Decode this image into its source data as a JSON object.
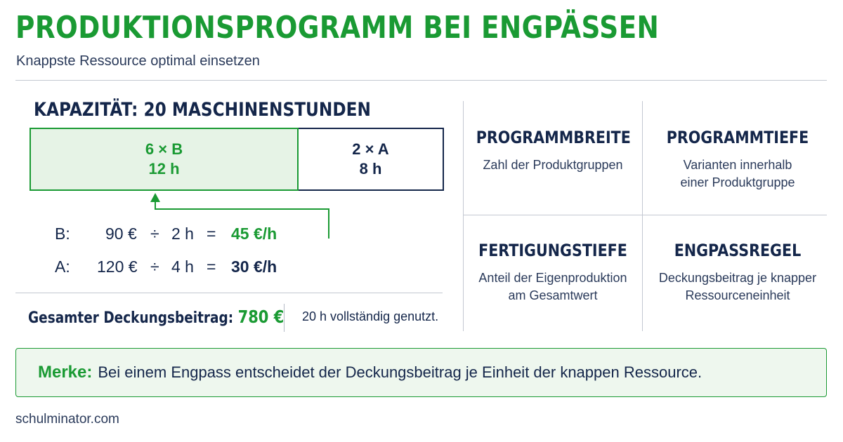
{
  "header": {
    "title": "PRODUKTIONSPROGRAMM BEI ENGPÄSSEN",
    "subtitle": "Knappste Ressource optimal einsetzen"
  },
  "capacity": {
    "heading": "KAPAZITÄT: 20 MASCHINENSTUNDEN",
    "segments": [
      {
        "line1": "6 × B",
        "line2": "12 h",
        "hours": 12,
        "color": "#1a9a33"
      },
      {
        "line1": "2 × A",
        "line2": "8 h",
        "hours": 8,
        "color": "#14264a"
      }
    ]
  },
  "calculations": [
    {
      "label": "B:",
      "profit": "90 €",
      "divide": "÷",
      "time": "2 h",
      "equals": "=",
      "result": "45 €/h",
      "highlight": true
    },
    {
      "label": "A:",
      "profit": "120 €",
      "divide": "÷",
      "time": "4 h",
      "equals": "=",
      "result": "30 €/h",
      "highlight": false
    }
  ],
  "total": {
    "label": "Gesamter Deckungsbeitrag:",
    "amount": "780 €",
    "note": "20 h vollständig genutzt."
  },
  "grid": [
    {
      "title": "PROGRAMMBREITE",
      "desc": [
        "Zahl der Produktgruppen"
      ]
    },
    {
      "title": "PROGRAMMTIEFE",
      "desc": [
        "Varianten innerhalb",
        "einer Produktgruppe"
      ]
    },
    {
      "title": "FERTIGUNGSTIEFE",
      "desc": [
        "Anteil der Eigenproduktion",
        "am Gesamtwert"
      ]
    },
    {
      "title": "ENGPASSREGEL",
      "desc": [
        "Deckungsbeitrag je knapper",
        "Ressourceneinheit"
      ]
    }
  ],
  "merke": {
    "label": "Merke:",
    "text": "Bei einem Engpass entscheidet der Deckungsbeitrag je Einheit der knappen Ressource."
  },
  "footer": {
    "source": "schulminator.com"
  },
  "colors": {
    "green": "#1a9a33",
    "navy": "#14264a",
    "light_green": "#e6f3e6",
    "divider": "#c3c8d1"
  }
}
